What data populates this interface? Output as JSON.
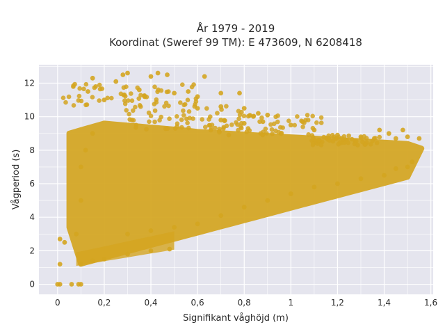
{
  "chart_data": {
    "type": "scatter",
    "title_line1": "År 1979 - 2019",
    "title_line2": "Koordinat (Sweref 99 TM): E 473609, N 6208418",
    "xlabel": "Signifikant våghöjd (m)",
    "ylabel": "Vågperiod (s)",
    "xlim": [
      -0.08,
      1.61
    ],
    "ylim": [
      -0.6,
      13.1
    ],
    "x_ticks": [
      0,
      0.2,
      0.4,
      0.6,
      0.8,
      1,
      1.2,
      1.4,
      1.6
    ],
    "x_tick_labels": [
      "0",
      "0,2",
      "0,4",
      "0,6",
      "0,8",
      "1",
      "1,2",
      "1,4",
      "1,6"
    ],
    "y_ticks": [
      0,
      2,
      4,
      6,
      8,
      10,
      12
    ],
    "y_tick_labels": [
      "0",
      "2",
      "4",
      "6",
      "8",
      "10",
      "12"
    ],
    "grid": true,
    "plot_background": "#e5e5ee",
    "marker_color": "#d4a520",
    "series": [
      {
        "points": [
          [
            0.0,
            0.0
          ],
          [
            0.01,
            0.0
          ],
          [
            0.06,
            0.0
          ],
          [
            0.09,
            0.0
          ],
          [
            0.1,
            0.0
          ],
          [
            0.01,
            2.7
          ],
          [
            0.03,
            2.5
          ],
          [
            0.01,
            1.2
          ],
          [
            0.1,
            1.2
          ],
          [
            0.15,
            1.4
          ],
          [
            0.2,
            1.5
          ],
          [
            0.3,
            1.8
          ],
          [
            0.4,
            2.0
          ],
          [
            0.48,
            2.1
          ],
          [
            0.08,
            3.0
          ],
          [
            0.1,
            5.0
          ],
          [
            0.1,
            7.0
          ],
          [
            0.12,
            8.0
          ],
          [
            0.15,
            9.0
          ],
          [
            0.13,
            11.5
          ],
          [
            0.15,
            12.3
          ],
          [
            0.2,
            11.0
          ],
          [
            0.25,
            12.1
          ],
          [
            0.28,
            12.5
          ],
          [
            0.3,
            12.6
          ],
          [
            0.35,
            11.6
          ],
          [
            0.4,
            12.4
          ],
          [
            0.43,
            12.6
          ],
          [
            0.47,
            12.5
          ],
          [
            0.5,
            11.4
          ],
          [
            0.56,
            11.5
          ],
          [
            0.6,
            11.2
          ],
          [
            0.63,
            12.4
          ],
          [
            0.7,
            11.4
          ],
          [
            0.78,
            11.4
          ],
          [
            0.6,
            10.5
          ],
          [
            0.7,
            10.6
          ],
          [
            0.8,
            10.5
          ],
          [
            0.86,
            10.2
          ],
          [
            0.9,
            10.1
          ],
          [
            0.7,
            9.8
          ],
          [
            0.8,
            9.6
          ],
          [
            0.88,
            9.7
          ],
          [
            1.0,
            9.5
          ],
          [
            1.05,
            9.7
          ],
          [
            1.1,
            9.2
          ],
          [
            1.2,
            8.9
          ],
          [
            1.3,
            8.8
          ],
          [
            1.38,
            9.2
          ],
          [
            1.42,
            9.0
          ],
          [
            1.45,
            8.7
          ],
          [
            1.48,
            9.2
          ],
          [
            1.5,
            8.8
          ],
          [
            1.55,
            8.7
          ],
          [
            0.3,
            3.0
          ],
          [
            0.4,
            3.2
          ],
          [
            0.5,
            3.4
          ],
          [
            0.6,
            3.6
          ],
          [
            0.7,
            4.1
          ],
          [
            0.8,
            4.6
          ],
          [
            0.9,
            5.0
          ],
          [
            1.0,
            5.4
          ],
          [
            1.1,
            5.8
          ],
          [
            1.2,
            6.0
          ],
          [
            1.3,
            6.3
          ],
          [
            1.4,
            6.5
          ],
          [
            1.45,
            6.9
          ],
          [
            1.5,
            7.0
          ],
          [
            1.52,
            7.3
          ]
        ]
      }
    ]
  }
}
